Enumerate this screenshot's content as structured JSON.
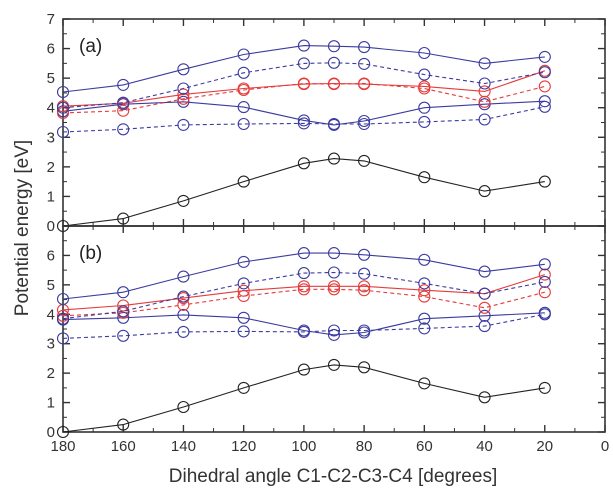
{
  "chart_data": {
    "type": "line",
    "xlabel": "Dihedral angle C1-C2-C3-C4 [degrees]",
    "ylabel": "Potential energy [eV]",
    "xlim": [
      180,
      0
    ],
    "ylim": [
      0,
      7
    ],
    "x_ticks": [
      180,
      160,
      140,
      120,
      100,
      80,
      60,
      40,
      20,
      0
    ],
    "y_ticks": [
      0,
      1,
      2,
      3,
      4,
      5,
      6,
      7
    ],
    "grid": false,
    "colors": {
      "black": "#222222",
      "blue": "#3b3ba0",
      "red": "#e53b3b"
    },
    "x": [
      180,
      160,
      140,
      120,
      100,
      90,
      80,
      60,
      40,
      20
    ],
    "panels": [
      {
        "label": "(a)",
        "series": [
          {
            "color": "black",
            "dashed": false,
            "values": [
              0.0,
              0.25,
              0.85,
              1.5,
              2.12,
              2.28,
              2.2,
              1.65,
              1.18,
              1.5
            ]
          },
          {
            "color": "blue",
            "dashed": true,
            "values": [
              3.18,
              3.27,
              3.42,
              3.45,
              3.47,
              3.45,
              3.45,
              3.52,
              3.6,
              4.03
            ]
          },
          {
            "color": "blue",
            "dashed": false,
            "values": [
              3.88,
              4.12,
              4.2,
              4.02,
              3.57,
              3.42,
              3.55,
              4.0,
              4.12,
              4.22
            ]
          },
          {
            "color": "red",
            "dashed": true,
            "values": [
              3.82,
              3.9,
              4.3,
              4.6,
              4.82,
              4.8,
              4.82,
              4.65,
              4.2,
              4.72
            ]
          },
          {
            "color": "red",
            "dashed": false,
            "values": [
              4.05,
              4.15,
              4.45,
              4.65,
              4.8,
              4.82,
              4.8,
              4.72,
              4.55,
              5.25
            ]
          },
          {
            "color": "blue",
            "dashed": true,
            "values": [
              4.0,
              4.17,
              4.65,
              5.18,
              5.5,
              5.52,
              5.48,
              5.12,
              4.82,
              5.2
            ]
          },
          {
            "color": "blue",
            "dashed": false,
            "values": [
              4.53,
              4.77,
              5.3,
              5.8,
              6.1,
              6.08,
              6.05,
              5.85,
              5.5,
              5.72
            ]
          }
        ]
      },
      {
        "label": "(b)",
        "series": [
          {
            "color": "black",
            "dashed": false,
            "values": [
              0.0,
              0.25,
              0.85,
              1.5,
              2.12,
              2.28,
              2.2,
              1.65,
              1.18,
              1.5
            ]
          },
          {
            "color": "blue",
            "dashed": true,
            "values": [
              3.18,
              3.27,
              3.4,
              3.42,
              3.4,
              3.45,
              3.45,
              3.52,
              3.6,
              4.0
            ]
          },
          {
            "color": "blue",
            "dashed": false,
            "values": [
              3.82,
              3.88,
              3.98,
              3.88,
              3.45,
              3.3,
              3.38,
              3.85,
              3.95,
              4.05
            ]
          },
          {
            "color": "red",
            "dashed": true,
            "values": [
              3.95,
              4.05,
              4.32,
              4.62,
              4.85,
              4.85,
              4.82,
              4.6,
              4.22,
              4.75
            ]
          },
          {
            "color": "red",
            "dashed": false,
            "values": [
              4.15,
              4.3,
              4.55,
              4.8,
              4.95,
              4.95,
              4.95,
              4.82,
              4.7,
              5.35
            ]
          },
          {
            "color": "blue",
            "dashed": true,
            "values": [
              3.85,
              4.1,
              4.6,
              5.05,
              5.4,
              5.42,
              5.38,
              5.05,
              4.7,
              5.1
            ]
          },
          {
            "color": "blue",
            "dashed": false,
            "values": [
              4.52,
              4.75,
              5.28,
              5.78,
              6.08,
              6.08,
              6.02,
              5.85,
              5.45,
              5.7
            ]
          }
        ]
      }
    ]
  }
}
